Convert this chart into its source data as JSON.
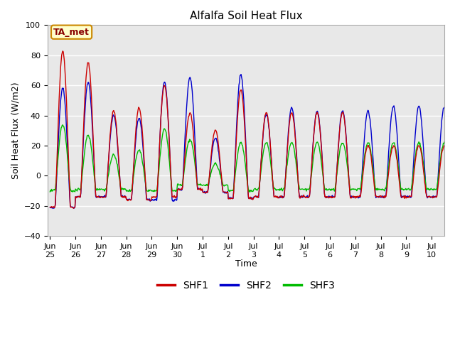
{
  "title": "Alfalfa Soil Heat Flux",
  "ylabel": "Soil Heat Flux (W/m2)",
  "xlabel": "Time",
  "ylim": [
    -40,
    100
  ],
  "xlim": [
    -0.1,
    15.5
  ],
  "annotation": "TA_met",
  "legend_labels": [
    "SHF1",
    "SHF2",
    "SHF3"
  ],
  "line_colors": [
    "#cc0000",
    "#0000cc",
    "#00bb00"
  ],
  "linewidth": 1.0,
  "bg_color": "#e8e8e8",
  "fig_color": "#ffffff",
  "xtick_labels": [
    "Jun\n25",
    "Jun\n26",
    "Jun\n27",
    "Jun\n28",
    "Jun\n29",
    "Jun\n30",
    "Jul\n1",
    "Jul\n2",
    "Jul\n3",
    "Jul\n4",
    "Jul\n5",
    "Jul\n6",
    "Jul\n7",
    "Jul\n8",
    "Jul\n9",
    "Jul\n10"
  ],
  "xtick_positions": [
    0,
    1,
    2,
    3,
    4,
    5,
    6,
    7,
    8,
    9,
    10,
    11,
    12,
    13,
    14,
    15
  ],
  "ytick_positions": [
    -40,
    -20,
    0,
    20,
    40,
    60,
    80,
    100
  ],
  "day_peaks_shf1": [
    83,
    75,
    43,
    45,
    60,
    42,
    30,
    57,
    42,
    42,
    42,
    42,
    20,
    20,
    20
  ],
  "day_peaks_shf2": [
    58,
    62,
    40,
    38,
    62,
    65,
    25,
    67,
    41,
    45,
    43,
    43,
    43,
    46,
    46
  ],
  "day_peaks_shf3": [
    34,
    27,
    14,
    17,
    31,
    24,
    8,
    22,
    22,
    22,
    22,
    22,
    22,
    22,
    22
  ],
  "night_troughs_shf1": [
    -21,
    -14,
    -14,
    -16,
    -14,
    -9,
    -11,
    -15,
    -14,
    -14,
    -14,
    -14,
    -14,
    -14,
    -14
  ],
  "night_troughs_shf2": [
    -21,
    -14,
    -14,
    -16,
    -16,
    -9,
    -11,
    -15,
    -14,
    -14,
    -14,
    -14,
    -14,
    -14,
    -14
  ],
  "night_troughs_shf3": [
    -10,
    -9,
    -9,
    -10,
    -10,
    -6,
    -6,
    -10,
    -9,
    -9,
    -9,
    -9,
    -9,
    -9,
    -9
  ],
  "annotation_color": "#880000",
  "annotation_bg": "#ffffcc",
  "annotation_edge": "#cc8800"
}
